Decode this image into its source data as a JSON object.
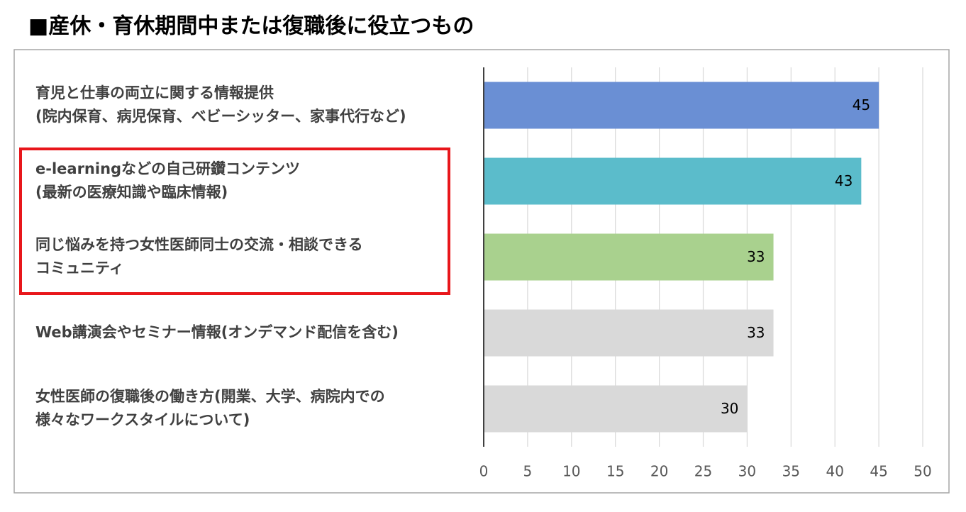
{
  "chart_data": {
    "type": "bar",
    "orientation": "horizontal",
    "title": "■産休・育休期間中または復職後に役立つもの",
    "categories": [
      [
        "育児と仕事の両立に関する情報提供",
        "(院内保育、病児保育、ベビーシッター、家事代行など)"
      ],
      [
        "e-learningなどの自己研鑽コンテンツ",
        "(最新の医療知識や臨床情報)"
      ],
      [
        "同じ悩みを持つ女性医師同士の交流・相談できる",
        "コミュニティ"
      ],
      [
        "Web講演会やセミナー情報(オンデマンド配信を含む)"
      ],
      [
        "女性医師の復職後の働き方(開業、大学、病院内での",
        "様々なワークスタイルについて)"
      ]
    ],
    "values": [
      45,
      43,
      33,
      33,
      30
    ],
    "colors": [
      "#6a8fd4",
      "#5bbccb",
      "#a9d18e",
      "#d9d9d9",
      "#d9d9d9"
    ],
    "xlim": [
      0,
      50
    ],
    "xticks": [
      0,
      5,
      10,
      15,
      20,
      25,
      30,
      35,
      40,
      45,
      50
    ],
    "grid": true
  }
}
